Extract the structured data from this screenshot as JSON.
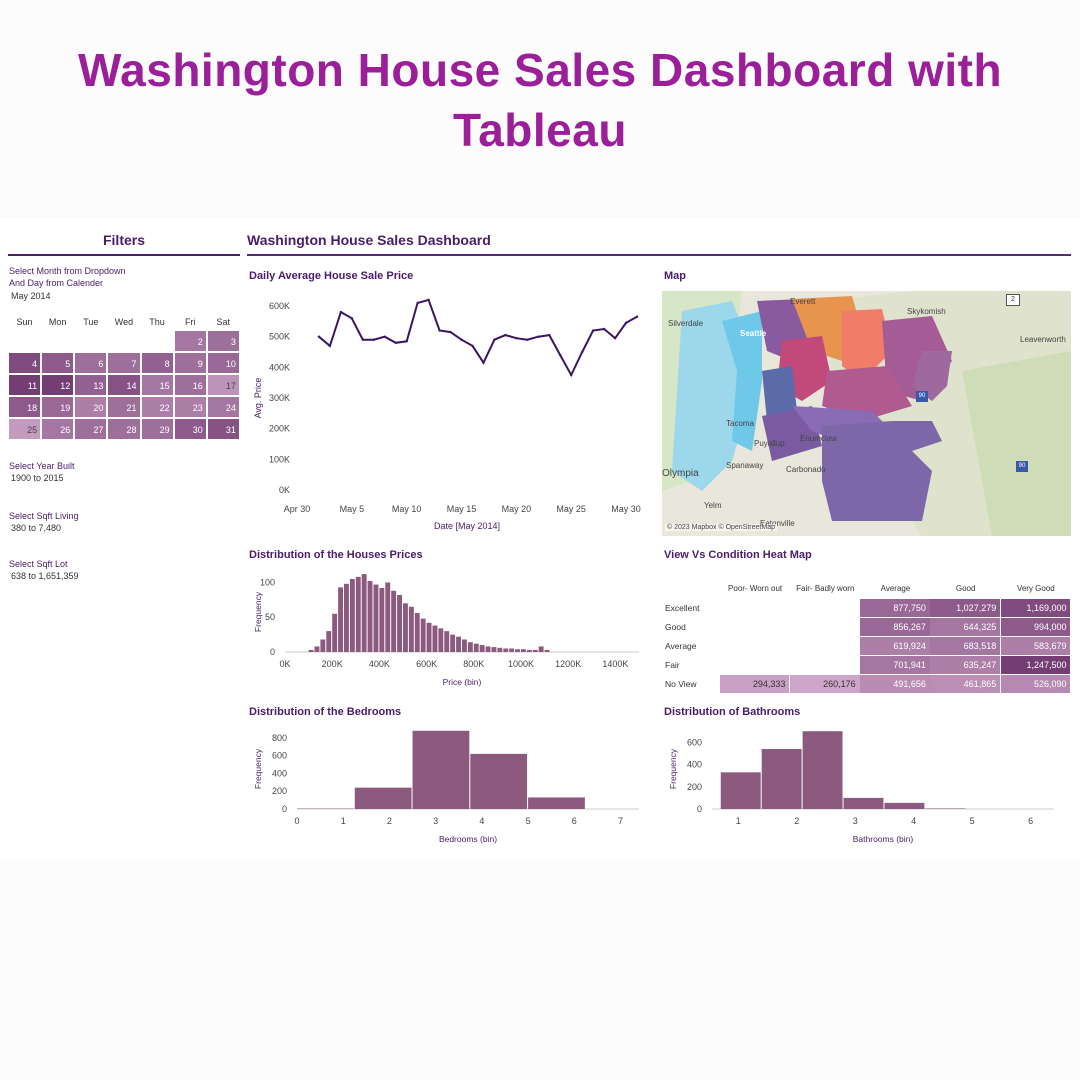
{
  "hero": {
    "line1": "Washington  House Sales Dashboard with",
    "line2": "Tableau"
  },
  "filters": {
    "title": "Filters",
    "month_label_1": "Select Month from Dropdown",
    "month_label_2": "And Day from Calender",
    "month_value": "May 2014",
    "dow": [
      "Sun",
      "Mon",
      "Tue",
      "Wed",
      "Thu",
      "Fri",
      "Sat"
    ],
    "calendar": [
      [
        null,
        null,
        null,
        null,
        null,
        "2",
        "3"
      ],
      [
        "4",
        "5",
        "6",
        "7",
        "8",
        "9",
        "10"
      ],
      [
        "11",
        "12",
        "13",
        "14",
        "15",
        "16",
        "17"
      ],
      [
        "18",
        "19",
        "20",
        "21",
        "22",
        "23",
        "24"
      ],
      [
        "25",
        "26",
        "27",
        "28",
        "29",
        "30",
        "31"
      ]
    ],
    "calendar_intensity": [
      [
        0,
        0,
        0,
        0,
        0,
        0.55,
        0.6
      ],
      [
        0.85,
        0.75,
        0.6,
        0.6,
        0.7,
        0.6,
        0.65
      ],
      [
        0.95,
        0.95,
        0.7,
        0.8,
        0.55,
        0.6,
        0.35
      ],
      [
        0.75,
        0.65,
        0.5,
        0.6,
        0.5,
        0.5,
        0.55
      ],
      [
        0.3,
        0.55,
        0.6,
        0.6,
        0.6,
        0.75,
        0.8
      ]
    ],
    "year_label": "Select Year Built",
    "year_value": "1900 to 2015",
    "living_label": "Select Sqft Living",
    "living_value": "380 to 7,480",
    "lot_label": "Select Sqft Lot",
    "lot_value": "638 to 1,651,359"
  },
  "dashboard_title": "Washington House Sales Dashboard",
  "colors": {
    "primary": "#4a1c6b",
    "bar": "#8b5a7e",
    "hero": "#9a1f99"
  },
  "line_chart": {
    "title": "Daily Average House Sale Price",
    "chart_data": {
      "type": "line",
      "title": "Daily Average House Sale Price",
      "xlabel": "Date [May 2014]",
      "ylabel": "Avg. Price",
      "ylim": [
        0,
        600000
      ],
      "yticks": [
        "0K",
        "100K",
        "200K",
        "300K",
        "400K",
        "500K",
        "600K"
      ],
      "xticks": [
        "Apr 30",
        "May 5",
        "May 10",
        "May 15",
        "May 20",
        "May 25",
        "May 30"
      ],
      "x": [
        2,
        3,
        4,
        5,
        6,
        7,
        8,
        9,
        10,
        11,
        12,
        13,
        14,
        15,
        16,
        17,
        18,
        19,
        20,
        21,
        22,
        23,
        24,
        25,
        26,
        27,
        28,
        29,
        30,
        31
      ],
      "y": [
        500000,
        470000,
        580000,
        560000,
        490000,
        490000,
        500000,
        480000,
        485000,
        610000,
        620000,
        520000,
        515000,
        490000,
        470000,
        415000,
        490000,
        505000,
        495000,
        490000,
        500000,
        505000,
        440000,
        375000,
        450000,
        520000,
        525000,
        495000,
        545000,
        565000
      ]
    }
  },
  "map": {
    "title": "Map",
    "credit": "© 2023 Mapbox © OpenStreetMap",
    "places": [
      "Silverdale",
      "Skykomish",
      "Leavenworth",
      "Tacoma",
      "Puyallup",
      "Enumclaw",
      "Spanaway",
      "Carbonado",
      "Olympia",
      "Yelm",
      "Seattle",
      "Everett",
      "Eatonville"
    ],
    "route_2": "2",
    "route_90": "90"
  },
  "hist_price": {
    "title": "Distribution of the Houses Prices",
    "chart_data": {
      "type": "bar",
      "title": "Distribution of the Houses Prices",
      "xlabel": "Price (bin)",
      "ylabel": "Frequency",
      "ylim": [
        0,
        115
      ],
      "yticks": [
        "0",
        "50",
        "100"
      ],
      "xticks": [
        "0K",
        "200K",
        "400K",
        "600K",
        "800K",
        "1000K",
        "1200K",
        "1400K"
      ],
      "bin_start_k": 100,
      "bin_width_k": 25,
      "values": [
        3,
        8,
        18,
        30,
        55,
        93,
        98,
        105,
        108,
        112,
        102,
        97,
        92,
        100,
        88,
        82,
        70,
        65,
        56,
        48,
        42,
        38,
        34,
        30,
        25,
        22,
        18,
        14,
        12,
        10,
        8,
        7,
        6,
        5,
        5,
        4,
        4,
        3,
        3,
        8,
        3
      ]
    }
  },
  "heatmap": {
    "title": "View Vs Condition Heat Map",
    "chart_data": {
      "type": "heatmap",
      "title": "View Vs Condition Heat Map",
      "columns": [
        "Poor- Worn out",
        "Fair- Badly worn",
        "Average",
        "Good",
        "Very Good"
      ],
      "rows": [
        "Excellent",
        "Good",
        "Average",
        "Fair",
        "No View"
      ],
      "cells": [
        [
          "",
          "",
          "877,750",
          "1,027,279",
          "1,169,000"
        ],
        [
          "",
          "",
          "856,267",
          "644,325",
          "994,000"
        ],
        [
          "",
          "",
          "619,924",
          "683,518",
          "583,679"
        ],
        [
          "",
          "",
          "701,941",
          "635,247",
          "1,247,500"
        ],
        [
          "294,333",
          "260,176",
          "491,656",
          "461,865",
          "526,090"
        ]
      ],
      "intensity": [
        [
          0,
          0,
          0.65,
          0.75,
          0.85
        ],
        [
          0,
          0,
          0.65,
          0.55,
          0.75
        ],
        [
          0,
          0,
          0.5,
          0.55,
          0.5
        ],
        [
          0,
          0,
          0.55,
          0.5,
          0.95
        ],
        [
          0.25,
          0.22,
          0.4,
          0.38,
          0.42
        ]
      ]
    }
  },
  "hist_bed": {
    "title": "Distribution of the Bedrooms",
    "chart_data": {
      "type": "bar",
      "title": "Distribution of the Bedrooms",
      "xlabel": "Bedrooms (bin)",
      "ylabel": "Frequency",
      "ylim": [
        0,
        900
      ],
      "yticks": [
        "0",
        "200",
        "400",
        "600",
        "800"
      ],
      "xticks": [
        "0",
        "1",
        "2",
        "3",
        "4",
        "5",
        "6",
        "7"
      ],
      "bins": [
        [
          0,
          1.25
        ],
        [
          1.25,
          2.5
        ],
        [
          2.5,
          3.75
        ],
        [
          3.75,
          5
        ],
        [
          5,
          6.25
        ]
      ],
      "values": [
        5,
        240,
        880,
        620,
        130
      ]
    }
  },
  "hist_bath": {
    "title": "Distribution of Bathrooms",
    "chart_data": {
      "type": "bar",
      "title": "Distribution of Bathrooms",
      "xlabel": "Bathrooms (bin)",
      "ylabel": "Frequency",
      "ylim": [
        0,
        720
      ],
      "yticks": [
        "0",
        "200",
        "400",
        "600"
      ],
      "xticks": [
        "1",
        "2",
        "3",
        "4",
        "5",
        "6"
      ],
      "bins": [
        [
          0.7,
          1.4
        ],
        [
          1.4,
          2.1
        ],
        [
          2.1,
          2.8
        ],
        [
          2.8,
          3.5
        ],
        [
          3.5,
          4.2
        ],
        [
          4.2,
          4.9
        ]
      ],
      "values": [
        330,
        540,
        700,
        100,
        55,
        5
      ]
    }
  }
}
